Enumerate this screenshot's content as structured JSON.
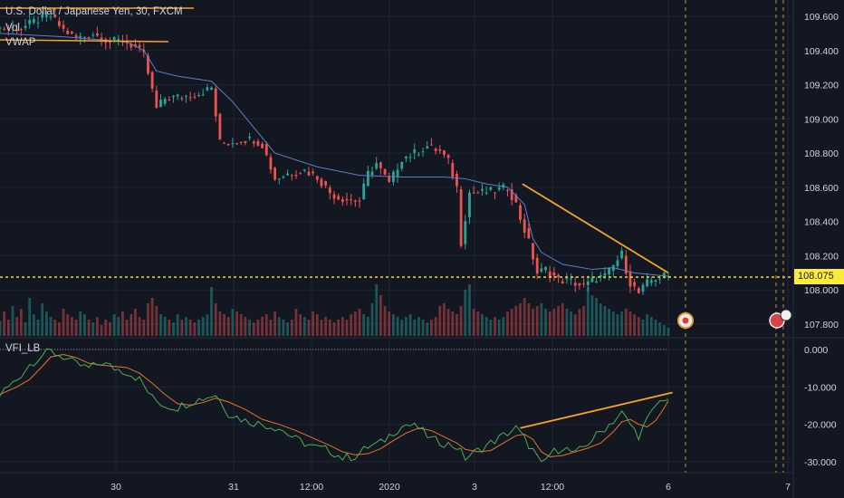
{
  "legend": {
    "symbol": "U.S. Dollar / Japanese Yen, 30, FXCM",
    "vol": "Vol",
    "vwap": "VWAP",
    "vfi": "VFI_LB"
  },
  "last_price_label": "108.075",
  "colors": {
    "background": "#131722",
    "grid": "#1f2433",
    "up": "#26a69a",
    "down": "#ef5350",
    "vwap": "#5b7fc7",
    "trendline": "#f7a325",
    "price_line": "#ffeb3b",
    "vfi": "#4caf50",
    "vfi_signal": "#e6742c"
  },
  "chart_data": [
    {
      "type": "candlestick",
      "title": "U.S. Dollar / Japanese Yen, 30, FXCM",
      "series": [
        {
          "name": "VWAP"
        },
        {
          "name": "Vol"
        }
      ],
      "y_ticks": [
        "109.600",
        "109.400",
        "109.200",
        "109.000",
        "108.800",
        "108.600",
        "108.400",
        "108.200",
        "108.000",
        "107.800"
      ],
      "ylim": [
        107.72,
        109.72
      ],
      "x_ticks": [
        "30",
        "31",
        "12:00",
        "2020",
        "3",
        "12:00",
        "6",
        "7"
      ],
      "last_price": 108.075,
      "price_path": [
        [
          0,
          109.53
        ],
        [
          6,
          109.53
        ],
        [
          10,
          109.58
        ],
        [
          13,
          109.6
        ],
        [
          16,
          109.52
        ],
        [
          19,
          109.47
        ],
        [
          23,
          109.5
        ],
        [
          27,
          109.45
        ],
        [
          30,
          109.46
        ],
        [
          33,
          109.42
        ],
        [
          35,
          109.37
        ],
        [
          38,
          109.06
        ],
        [
          40,
          109.12
        ],
        [
          44,
          109.13
        ],
        [
          48,
          109.15
        ],
        [
          51,
          109.18
        ],
        [
          53,
          108.86
        ],
        [
          55,
          108.86
        ],
        [
          58,
          108.88
        ],
        [
          61,
          108.88
        ],
        [
          63,
          108.85
        ],
        [
          66,
          108.65
        ],
        [
          69,
          108.68
        ],
        [
          73,
          108.7
        ],
        [
          76,
          108.66
        ],
        [
          79,
          108.57
        ],
        [
          81,
          108.54
        ],
        [
          83,
          108.53
        ],
        [
          86,
          108.52
        ],
        [
          88,
          108.68
        ],
        [
          90,
          108.74
        ],
        [
          93,
          108.62
        ],
        [
          96,
          108.77
        ],
        [
          99,
          108.8
        ],
        [
          102,
          108.84
        ],
        [
          105,
          108.81
        ],
        [
          107,
          108.75
        ],
        [
          109,
          108.6
        ],
        [
          110,
          108.28
        ],
        [
          112,
          108.57
        ],
        [
          115,
          108.57
        ],
        [
          118,
          108.58
        ],
        [
          121,
          108.6
        ],
        [
          123,
          108.5
        ],
        [
          124,
          108.42
        ],
        [
          126,
          108.28
        ],
        [
          128,
          108.1
        ],
        [
          130,
          108.12
        ],
        [
          133,
          108.06
        ],
        [
          136,
          108.05
        ],
        [
          139,
          108.02
        ],
        [
          142,
          108.07
        ],
        [
          144,
          108.08
        ],
        [
          146,
          108.14
        ],
        [
          148,
          108.21
        ],
        [
          149,
          108.12
        ],
        [
          150,
          108.04
        ],
        [
          152,
          107.98
        ],
        [
          154,
          108.04
        ],
        [
          156,
          108.07
        ],
        [
          158,
          108.08
        ]
      ],
      "vwap_path": [
        [
          0,
          109.5
        ],
        [
          15,
          109.48
        ],
        [
          30,
          109.45
        ],
        [
          34,
          109.4
        ],
        [
          37,
          109.28
        ],
        [
          42,
          109.25
        ],
        [
          50,
          109.22
        ],
        [
          55,
          109.1
        ],
        [
          60,
          108.95
        ],
        [
          65,
          108.8
        ],
        [
          75,
          108.72
        ],
        [
          85,
          108.67
        ],
        [
          95,
          108.66
        ],
        [
          105,
          108.66
        ],
        [
          110,
          108.65
        ],
        [
          115,
          108.62
        ],
        [
          120,
          108.6
        ],
        [
          124,
          108.5
        ],
        [
          126,
          108.3
        ],
        [
          128,
          108.22
        ],
        [
          133,
          108.15
        ],
        [
          140,
          108.12
        ],
        [
          145,
          108.13
        ],
        [
          150,
          108.1
        ],
        [
          158,
          108.08
        ]
      ],
      "trendline": [
        [
          123.5,
          108.62
        ],
        [
          158,
          108.1
        ],
        [
          146,
          108.26
        ],
        [
          156,
          108.08
        ]
      ],
      "volume_profile": [
        0.28,
        0.45,
        0.3,
        0.55,
        0.35,
        0.5,
        0.25,
        0.7,
        0.4,
        0.3,
        0.6,
        0.45,
        0.35,
        0.3,
        0.25,
        0.5,
        0.4,
        0.35,
        0.3,
        0.45,
        0.4,
        0.3,
        0.25,
        0.35,
        0.2,
        0.3,
        0.25,
        0.4,
        0.35,
        0.45,
        0.3,
        0.4,
        0.5,
        0.35,
        0.3,
        0.6,
        0.7,
        0.55,
        0.4,
        0.35,
        0.3,
        0.25,
        0.4,
        0.3,
        0.35,
        0.3,
        0.25,
        0.3,
        0.35,
        0.4,
        0.9,
        0.6,
        0.45,
        0.4,
        0.35,
        0.5,
        0.45,
        0.4,
        0.35,
        0.3,
        0.25,
        0.3,
        0.35,
        0.4,
        0.3,
        0.45,
        0.35,
        0.3,
        0.25,
        0.3,
        0.5,
        0.4,
        0.35,
        0.3,
        0.45,
        0.4,
        0.3,
        0.35,
        0.3,
        0.25,
        0.3,
        0.35,
        0.3,
        0.4,
        0.45,
        0.5,
        0.4,
        0.35,
        0.6,
        0.95,
        0.75,
        0.55,
        0.45,
        0.4,
        0.35,
        0.3,
        0.35,
        0.4,
        0.3,
        0.35,
        0.3,
        0.25,
        0.3,
        0.35,
        0.55,
        0.6,
        0.5,
        0.45,
        0.4,
        0.55,
        0.85,
        0.95,
        0.5,
        0.45,
        0.4,
        0.35,
        0.3,
        0.35,
        0.3,
        0.35,
        0.45,
        0.5,
        0.55,
        0.6,
        0.7,
        0.6,
        0.5,
        0.55,
        0.6,
        0.5,
        0.45,
        0.5,
        0.55,
        0.6,
        0.5,
        0.45,
        0.4,
        0.5,
        0.55,
        0.9,
        0.75,
        0.7,
        0.6,
        0.55,
        0.5,
        0.45,
        0.4,
        0.45,
        0.5,
        0.45,
        0.4,
        0.35,
        0.3,
        0.4,
        0.35,
        0.3,
        0.25,
        0.2,
        0.15,
        0.1
      ]
    },
    {
      "type": "line",
      "title": "VFI_LB",
      "y_ticks": [
        "0.000",
        "-10.000",
        "-20.000",
        "-30.000"
      ],
      "ylim": [
        -33,
        2
      ],
      "zero_line": 0,
      "vfi_path": [
        [
          0,
          -12
        ],
        [
          4,
          -8
        ],
        [
          7,
          -4
        ],
        [
          10,
          -1.5
        ],
        [
          12,
          -0.5
        ],
        [
          15,
          -2
        ],
        [
          18,
          -4
        ],
        [
          21,
          -5
        ],
        [
          24,
          -3.5
        ],
        [
          27,
          -5
        ],
        [
          30,
          -6
        ],
        [
          33,
          -8
        ],
        [
          36,
          -13
        ],
        [
          39,
          -15
        ],
        [
          42,
          -15.5
        ],
        [
          45,
          -14
        ],
        [
          48,
          -13
        ],
        [
          51,
          -12
        ],
        [
          54,
          -17
        ],
        [
          58,
          -19
        ],
        [
          62,
          -20
        ],
        [
          66,
          -21
        ],
        [
          70,
          -24
        ],
        [
          74,
          -26
        ],
        [
          78,
          -27
        ],
        [
          81,
          -29
        ],
        [
          84,
          -28.5
        ],
        [
          87,
          -26
        ],
        [
          90,
          -25
        ],
        [
          93,
          -22
        ],
        [
          96,
          -20
        ],
        [
          99,
          -21
        ],
        [
          102,
          -24
        ],
        [
          105,
          -25
        ],
        [
          108,
          -26
        ],
        [
          110,
          -29
        ],
        [
          113,
          -27
        ],
        [
          116,
          -25
        ],
        [
          119,
          -23
        ],
        [
          122,
          -21
        ],
        [
          124,
          -24
        ],
        [
          126,
          -27
        ],
        [
          128,
          -31
        ],
        [
          130,
          -28
        ],
        [
          133,
          -26
        ],
        [
          136,
          -28
        ],
        [
          139,
          -25
        ],
        [
          142,
          -22
        ],
        [
          145,
          -19
        ],
        [
          147,
          -17
        ],
        [
          149,
          -20
        ],
        [
          151,
          -23
        ],
        [
          153,
          -19
        ],
        [
          155,
          -15
        ],
        [
          157,
          -13
        ],
        [
          158,
          -13
        ]
      ],
      "trendline": [
        [
          123,
          -21
        ],
        [
          159,
          -11.5
        ]
      ]
    }
  ]
}
